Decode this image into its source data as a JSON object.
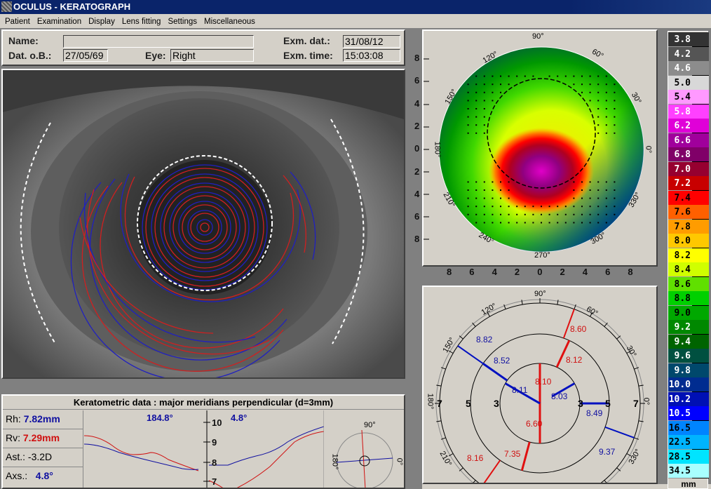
{
  "window": {
    "title": "OCULUS - KERATOGRAPH"
  },
  "menu": [
    "Patient",
    "Examination",
    "Display",
    "Lens fitting",
    "Settings",
    "Miscellaneous"
  ],
  "patient": {
    "name_label": "Name:",
    "name": "",
    "dob_label": "Dat. o.B.:",
    "dob": "27/05/69",
    "eye_label": "Eye:",
    "eye": "Right",
    "exam_date_label": "Exm. dat.:",
    "exam_date": "31/08/12",
    "exam_time_label": "Exm. time:",
    "exam_time": "15:03:08"
  },
  "keratometric": {
    "title": "Keratometric data : major meridians perpendicular (d=3mm)",
    "rh_label": "Rh:",
    "rh": "7.82mm",
    "rv_label": "Rv:",
    "rv": "7.29mm",
    "ast_label": "Ast.:",
    "ast": "-3.2D",
    "axs_label": "Axs.:",
    "axs": "4.8°",
    "left_angle": "184.8°",
    "right_angle": "4.8°",
    "y_ticks": [
      "10",
      "9",
      "8",
      "7"
    ],
    "mini_labels": {
      "top": "90°",
      "left": "180°",
      "right": "0°"
    }
  },
  "topography": {
    "y_ticks": [
      "8",
      "6",
      "4",
      "2",
      "0",
      "2",
      "4",
      "6",
      "8"
    ],
    "x_ticks": [
      "8",
      "6",
      "4",
      "2",
      "0",
      "2",
      "4",
      "6",
      "8"
    ],
    "angle_labels": [
      "90°",
      "60°",
      "30°",
      "0°",
      "330°",
      "300°",
      "270°",
      "240°",
      "210°",
      "180°",
      "150°",
      "120°"
    ]
  },
  "meridians": {
    "angle_labels": [
      "90°",
      "60°",
      "30°",
      "0°",
      "330°",
      "210°",
      "180°",
      "150°",
      "120°"
    ],
    "ring_labels": [
      "7",
      "5",
      "3",
      "3",
      "5",
      "7"
    ],
    "values": [
      {
        "value": "8.10",
        "color": "red"
      },
      {
        "value": "6.60",
        "color": "red"
      },
      {
        "value": "8.11",
        "color": "blue"
      },
      {
        "value": "8.03",
        "color": "blue"
      },
      {
        "value": "8.12",
        "color": "red"
      },
      {
        "value": "8.52",
        "color": "blue"
      },
      {
        "value": "8.49",
        "color": "blue"
      },
      {
        "value": "7.35",
        "color": "red"
      },
      {
        "value": "8.60",
        "color": "red"
      },
      {
        "value": "8.82",
        "color": "blue"
      },
      {
        "value": "9.37",
        "color": "blue"
      },
      {
        "value": "8.16",
        "color": "red"
      }
    ]
  },
  "color_scale": {
    "unit": "mm",
    "entries": [
      {
        "v": "3.8",
        "c": "#333333"
      },
      {
        "v": "4.2",
        "c": "#555555"
      },
      {
        "v": "4.6",
        "c": "#8c8c8c"
      },
      {
        "v": "5.0",
        "c": "#d8d8d8"
      },
      {
        "v": "5.4",
        "c": "#ff99ff"
      },
      {
        "v": "5.8",
        "c": "#ff40ff"
      },
      {
        "v": "6.2",
        "c": "#e000d8"
      },
      {
        "v": "6.6",
        "c": "#a0009c"
      },
      {
        "v": "6.8",
        "c": "#800068"
      },
      {
        "v": "7.0",
        "c": "#960030"
      },
      {
        "v": "7.2",
        "c": "#c80000"
      },
      {
        "v": "7.4",
        "c": "#ff0000"
      },
      {
        "v": "7.6",
        "c": "#ff6000"
      },
      {
        "v": "7.8",
        "c": "#ff9c00"
      },
      {
        "v": "8.0",
        "c": "#ffc800"
      },
      {
        "v": "8.2",
        "c": "#ffff00"
      },
      {
        "v": "8.4",
        "c": "#d0ff00"
      },
      {
        "v": "8.6",
        "c": "#60e000"
      },
      {
        "v": "8.8",
        "c": "#00d000"
      },
      {
        "v": "9.0",
        "c": "#00a800"
      },
      {
        "v": "9.2",
        "c": "#008800"
      },
      {
        "v": "9.4",
        "c": "#006400"
      },
      {
        "v": "9.6",
        "c": "#005040"
      },
      {
        "v": "9.8",
        "c": "#00486c"
      },
      {
        "v": "10.0",
        "c": "#002c90"
      },
      {
        "v": "10.2",
        "c": "#0010b4"
      },
      {
        "v": "10.5",
        "c": "#0000ff"
      },
      {
        "v": "16.5",
        "c": "#0084ff"
      },
      {
        "v": "22.5",
        "c": "#00b4ff"
      },
      {
        "v": "28.5",
        "c": "#00e4ff"
      },
      {
        "v": "34.5",
        "c": "#a8ffff"
      }
    ]
  }
}
